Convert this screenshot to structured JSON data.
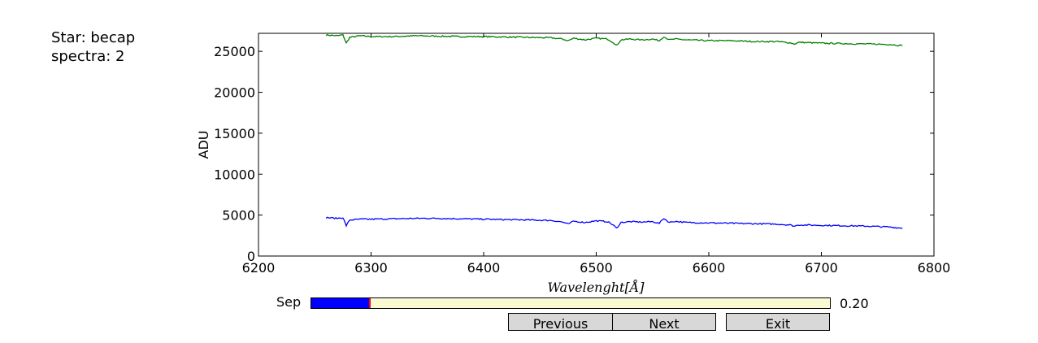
{
  "info": {
    "star_line": "Star: becap",
    "spectra_line": "spectra: 2"
  },
  "chart_data": {
    "type": "line",
    "xlabel": "Wavelenght[Å]",
    "ylabel": "ADU",
    "xlim": [
      6200,
      6800
    ],
    "ylim": [
      0,
      27200
    ],
    "xticks": [
      6200,
      6300,
      6400,
      6500,
      6600,
      6700,
      6800
    ],
    "yticks": [
      0,
      5000,
      10000,
      15000,
      20000,
      25000
    ],
    "grid": false,
    "series": [
      {
        "color": "#008000",
        "x": [
          6260,
          6270,
          6275,
          6278,
          6281,
          6290,
          6300,
          6320,
          6340,
          6360,
          6380,
          6400,
          6420,
          6440,
          6460,
          6470,
          6475,
          6480,
          6490,
          6500,
          6510,
          6515,
          6518,
          6522,
          6530,
          6540,
          6550,
          6556,
          6560,
          6565,
          6570,
          6580,
          6600,
          6620,
          6640,
          6660,
          6672,
          6676,
          6680,
          6700,
          6720,
          6740,
          6760,
          6772
        ],
        "y": [
          27000,
          26900,
          27000,
          26000,
          26700,
          26900,
          26800,
          26800,
          26900,
          26850,
          26800,
          26800,
          26750,
          26700,
          26650,
          26500,
          26300,
          26600,
          26400,
          26600,
          26500,
          26100,
          25700,
          26400,
          26500,
          26400,
          26500,
          26300,
          26800,
          26400,
          26500,
          26400,
          26300,
          26300,
          26200,
          26200,
          26050,
          25900,
          26100,
          26000,
          25950,
          25900,
          25850,
          25700
        ]
      },
      {
        "color": "#0000ff",
        "x": [
          6260,
          6270,
          6275,
          6278,
          6281,
          6290,
          6300,
          6320,
          6340,
          6360,
          6380,
          6400,
          6420,
          6440,
          6460,
          6470,
          6475,
          6480,
          6490,
          6500,
          6510,
          6515,
          6518,
          6522,
          6530,
          6540,
          6550,
          6556,
          6560,
          6565,
          6570,
          6580,
          6600,
          6620,
          6640,
          6660,
          6672,
          6676,
          6680,
          6700,
          6720,
          6740,
          6760,
          6772
        ],
        "y": [
          4700,
          4600,
          4700,
          3700,
          4400,
          4500,
          4500,
          4550,
          4600,
          4600,
          4550,
          4500,
          4450,
          4400,
          4350,
          4150,
          3900,
          4250,
          4100,
          4300,
          4200,
          3800,
          3400,
          4100,
          4200,
          4150,
          4200,
          4000,
          4600,
          4100,
          4250,
          4100,
          4050,
          4000,
          3950,
          3900,
          3800,
          3650,
          3800,
          3750,
          3700,
          3650,
          3550,
          3400
        ]
      }
    ]
  },
  "slider": {
    "label": "Sep",
    "value_text": "0.20",
    "fraction": 0.113,
    "fill_color": "#0000ff",
    "track_color": "#fafad2",
    "marker_color": "#ff0000"
  },
  "buttons": {
    "previous": "Previous",
    "next": "Next",
    "exit": "Exit"
  }
}
